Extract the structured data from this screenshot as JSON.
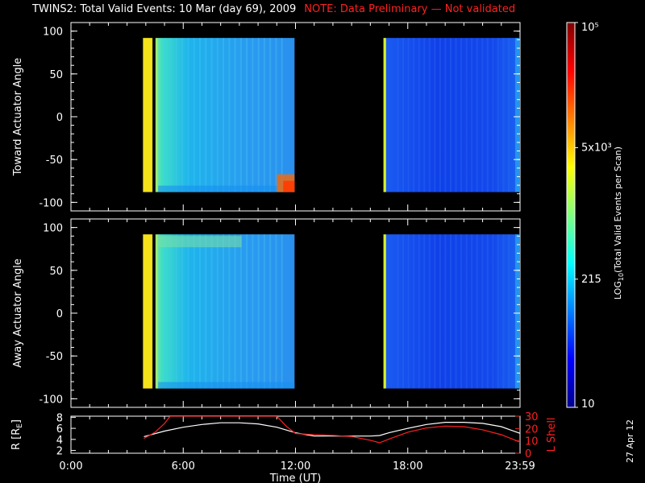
{
  "header": {
    "title": "TWINS2: Total Valid Events: 10 Mar (day  69), 2009",
    "note": "NOTE: Data Preliminary — Not validated"
  },
  "colors": {
    "note": "#ff2020",
    "r_curve": "#ffffff",
    "lshell_curve": "#ff2020",
    "axes": "#ffffff"
  },
  "chart_data": [
    {
      "type": "heatmap",
      "panel": "toward",
      "ylabel": "Toward Actuator Angle",
      "ylim": [
        -110,
        110
      ],
      "yticks": [
        100,
        50,
        0,
        -50,
        -100
      ],
      "xlim": [
        0,
        24
      ],
      "data_extent": {
        "angle_min": -88,
        "angle_max": 92
      },
      "segments": [
        {
          "start_hr": 3.85,
          "end_hr": 11.95
        },
        {
          "start_hr": 16.7,
          "end_hr": 24.0
        }
      ]
    },
    {
      "type": "heatmap",
      "panel": "away",
      "ylabel": "Away Actuator Angle",
      "ylim": [
        -110,
        110
      ],
      "yticks": [
        100,
        50,
        0,
        -50,
        -100
      ],
      "xlim": [
        0,
        24
      ],
      "data_extent": {
        "angle_min": -88,
        "angle_max": 92
      },
      "segments": [
        {
          "start_hr": 3.85,
          "end_hr": 11.95
        },
        {
          "start_hr": 16.7,
          "end_hr": 24.0
        }
      ]
    },
    {
      "type": "line",
      "panel": "ephemeris",
      "ylabel_left": "R [R",
      "ylabel_left_sub": "E",
      "ylabel_left_end": "]",
      "yticks_left": [
        2,
        4,
        6,
        8
      ],
      "ylim_left": [
        1.5,
        8.2
      ],
      "ylabel_right": "L Shell",
      "yticks_right": [
        0,
        10,
        20,
        30
      ],
      "ylim_right": [
        0,
        30
      ],
      "xlim": [
        0,
        24
      ],
      "xticks": [
        "0:00",
        "6:00",
        "12:00",
        "18:00",
        "23:59"
      ],
      "xlabel": "Time (UT)",
      "series": [
        {
          "axis": "left",
          "x": [
            3.9,
            5,
            6,
            7,
            8,
            9,
            10,
            11,
            12,
            13,
            14,
            15,
            16,
            16.5,
            17,
            18,
            19,
            20,
            21,
            22,
            23,
            24
          ],
          "y": [
            4.5,
            5.5,
            6.2,
            6.7,
            7.0,
            7.0,
            6.8,
            6.2,
            5.2,
            4.6,
            4.6,
            4.6,
            4.6,
            4.7,
            5.2,
            6.0,
            6.7,
            7.1,
            7.1,
            6.9,
            6.3,
            5.1
          ]
        },
        {
          "axis": "right",
          "x": [
            3.9,
            4.5,
            5.0,
            5.3,
            11.0,
            11.5,
            12.0,
            13.0,
            14.0,
            15.0,
            16.0,
            16.5,
            17.0,
            18.0,
            19.0,
            20.0,
            21.0,
            22.0,
            23.0,
            24.0
          ],
          "y": [
            12,
            17,
            24,
            30,
            30,
            22,
            16,
            15,
            14.5,
            13.5,
            10.5,
            8.5,
            11.5,
            17,
            20.5,
            22,
            21.5,
            19,
            15,
            9
          ]
        }
      ]
    }
  ],
  "colorbar": {
    "label_log": "LOG",
    "label_sub": "10",
    "label_rest": "(Total Valid Events per Scan)",
    "ticks": [
      {
        "text": "10",
        "value": 10
      },
      {
        "text": "215",
        "value": 215
      },
      {
        "text": "5x10³",
        "value": 5000
      },
      {
        "text": "10⁵",
        "value": 100000
      }
    ],
    "range": [
      10,
      100000
    ]
  },
  "footer": {
    "date_stamp": "27 Apr 12"
  }
}
